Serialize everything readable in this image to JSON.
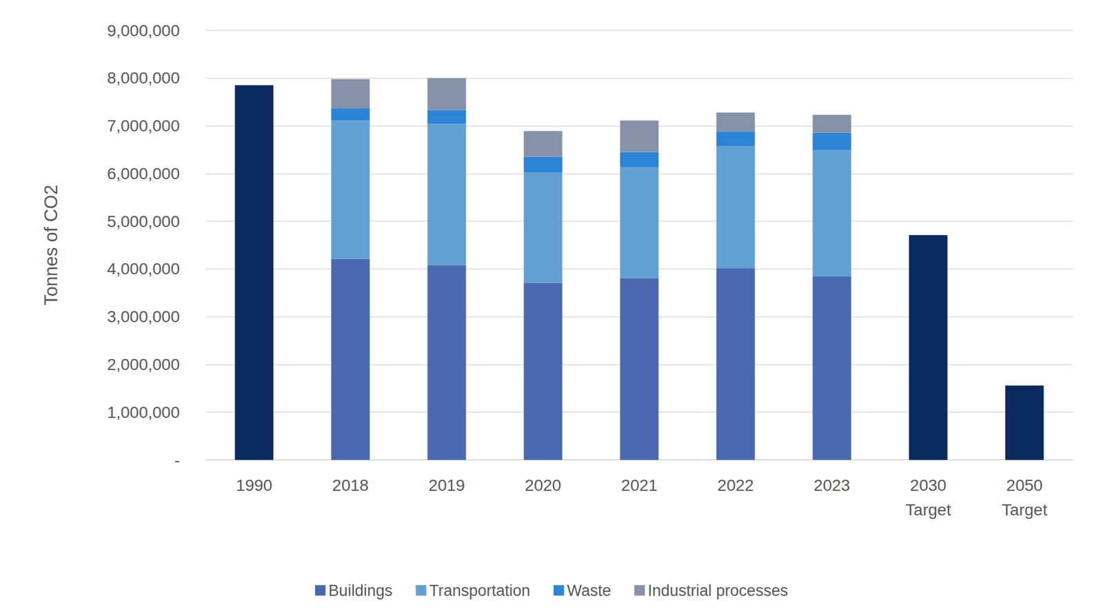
{
  "chart_data": {
    "type": "bar",
    "stacked": true,
    "grid": true,
    "legend": "bottom",
    "y_label": "Tonnes of CO2",
    "categories": [
      "1990",
      "2018",
      "2019",
      "2020",
      "2021",
      "2022",
      "2023",
      "2030\nTarget",
      "2050\nTarget"
    ],
    "series": [
      {
        "name": "Buildings",
        "color": "#4a69b0",
        "values": [
          null,
          4210000,
          4080000,
          3710000,
          3810000,
          4020000,
          3840000,
          null,
          null
        ]
      },
      {
        "name": "Transportation",
        "color": "#62a0d3",
        "values": [
          null,
          2900000,
          2960000,
          2310000,
          2330000,
          2560000,
          2650000,
          null,
          null
        ]
      },
      {
        "name": "Waste",
        "color": "#2b84d8",
        "values": [
          null,
          250000,
          290000,
          330000,
          310000,
          300000,
          360000,
          null,
          null
        ]
      },
      {
        "name": "Industrial processes",
        "color": "#8592aa",
        "values": [
          null,
          620000,
          670000,
          540000,
          660000,
          400000,
          380000,
          null,
          null
        ]
      },
      {
        "color": "#0b2b5e",
        "values": [
          7850000,
          null,
          null,
          null,
          null,
          null,
          null,
          4710000,
          1560000
        ]
      }
    ],
    "ylim": [
      0,
      9000000
    ],
    "yticks": [
      {
        "value": 0,
        "label": "-"
      },
      {
        "value": 1000000,
        "label": "1,000,000"
      },
      {
        "value": 2000000,
        "label": "2,000,000"
      },
      {
        "value": 3000000,
        "label": "3,000,000"
      },
      {
        "value": 4000000,
        "label": "4,000,000"
      },
      {
        "value": 5000000,
        "label": "5,000,000"
      },
      {
        "value": 6000000,
        "label": "6,000,000"
      },
      {
        "value": 7000000,
        "label": "7,000,000"
      },
      {
        "value": 8000000,
        "label": "8,000,000"
      },
      {
        "value": 9000000,
        "label": "9,000,000"
      }
    ]
  }
}
